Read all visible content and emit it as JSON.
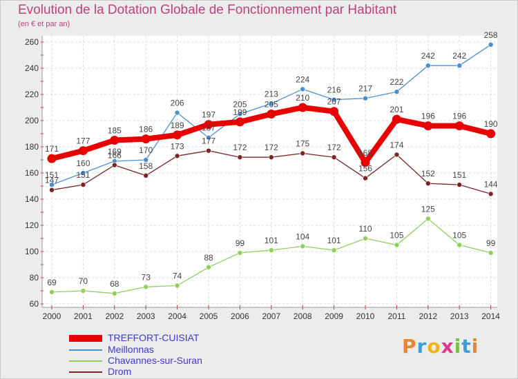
{
  "title": "Evolution de la Dotation Globale de Fonctionnement par Habitant",
  "subtitle": "(en € et par an)",
  "brand": {
    "letters": [
      "P",
      "r",
      "o",
      "x",
      "i",
      "t",
      "i"
    ],
    "colors": [
      "#e8862a",
      "#3aa0d8",
      "#f2b21a",
      "#d83a8a",
      "#7cc04a",
      "#3aa0d8",
      "#e8862a"
    ]
  },
  "chart_data": {
    "type": "line",
    "x": [
      "2000",
      "2001",
      "2002",
      "2003",
      "2004",
      "2005",
      "2006",
      "2007",
      "2008",
      "2009",
      "2010",
      "2011",
      "2012",
      "2013",
      "2014"
    ],
    "ylim": [
      60,
      260
    ],
    "yticks": [
      "60",
      "80",
      "100",
      "120",
      "140",
      "160",
      "180",
      "200",
      "220",
      "240",
      "260"
    ],
    "grid": true,
    "legend_position": "bottom-left",
    "series": [
      {
        "name": "TREFFORT-CUISIAT",
        "color": "#e80000",
        "emphasis": true,
        "values": [
          171,
          177,
          185,
          186,
          189,
          197,
          199,
          205,
          210,
          207,
          168,
          201,
          196,
          196,
          190
        ],
        "labels": [
          "171",
          "177",
          "185",
          "186",
          "189",
          "197",
          "199",
          "205",
          "210",
          "207",
          "168",
          "201",
          "196",
          "196",
          "190"
        ]
      },
      {
        "name": "Meillonnas",
        "color": "#4a8fd0",
        "emphasis": false,
        "values": [
          151,
          160,
          169,
          170,
          206,
          187,
          205,
          213,
          224,
          216,
          217,
          222,
          242,
          242,
          258
        ],
        "labels": [
          "151",
          "160",
          "169",
          "170",
          "206",
          "187",
          "205",
          "213",
          "224",
          "216",
          "217",
          "222",
          "242",
          "242",
          "258"
        ]
      },
      {
        "name": "Chavannes-sur-Suran",
        "color": "#8ed05a",
        "emphasis": false,
        "values": [
          69,
          70,
          68,
          73,
          74,
          88,
          99,
          101,
          104,
          101,
          110,
          105,
          125,
          105,
          99
        ],
        "labels": [
          "69",
          "70",
          "68",
          "73",
          "74",
          "88",
          "99",
          "101",
          "104",
          "101",
          "110",
          "105",
          "125",
          "105",
          "99"
        ]
      },
      {
        "name": "Drom",
        "color": "#7a2424",
        "emphasis": false,
        "values": [
          147,
          151,
          166,
          158,
          173,
          177,
          172,
          172,
          175,
          172,
          156,
          174,
          152,
          151,
          144
        ],
        "labels": [
          "147",
          "151",
          "166",
          "158",
          "173",
          "177",
          "172",
          "172",
          "175",
          "172",
          "156",
          "174",
          "152",
          "151",
          "144"
        ]
      }
    ]
  }
}
